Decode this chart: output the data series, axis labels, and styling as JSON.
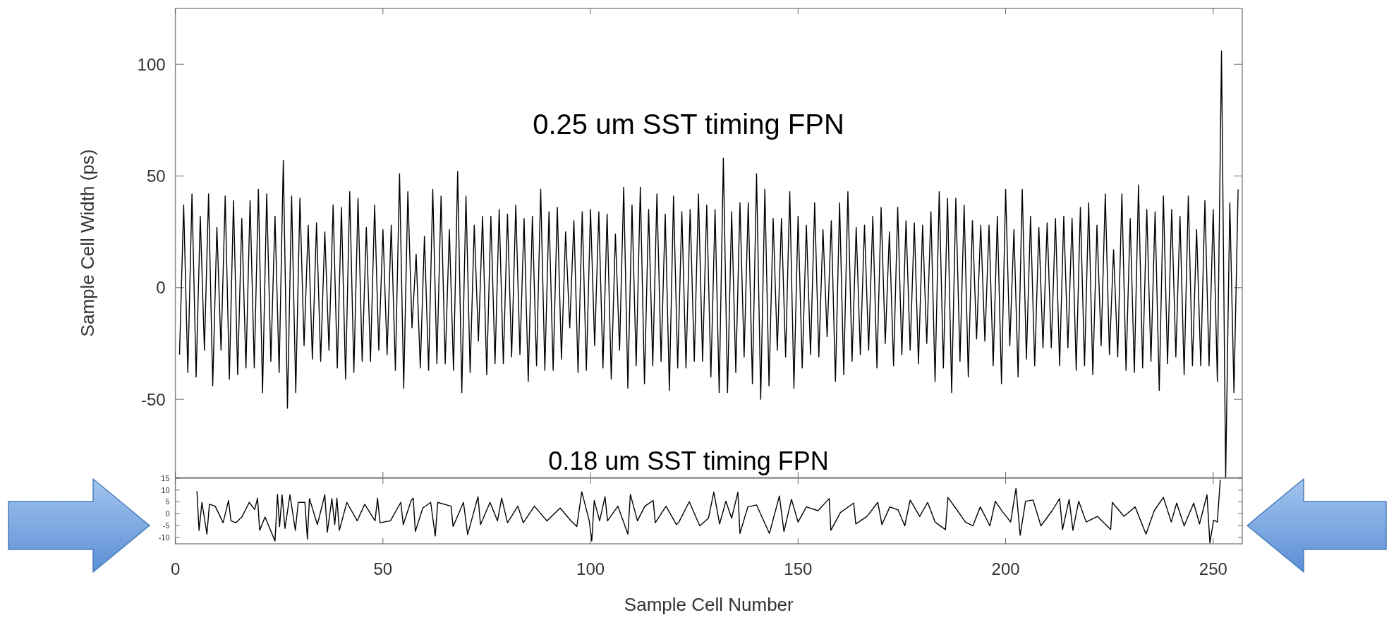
{
  "chart_data": [
    {
      "type": "line",
      "title": "0.25 um SST timing FPN",
      "ylabel": "Sample Cell Width (ps)",
      "xlim": [
        0,
        257
      ],
      "xticks": [
        0,
        50,
        100,
        150,
        200,
        250
      ],
      "ylim": [
        -85,
        125
      ],
      "yticks": [
        -50,
        0,
        50,
        100
      ],
      "tick_labels": "y",
      "grid": false,
      "marker": "none",
      "line_style": "solid",
      "series": [
        {
          "color": "#000000",
          "x": [
            1,
            2,
            3,
            4,
            5,
            6,
            7,
            8,
            9,
            10,
            11,
            12,
            13,
            14,
            15,
            16,
            17,
            18,
            19,
            20,
            21,
            22,
            23,
            24,
            25,
            26,
            27,
            28,
            29,
            30,
            31,
            32,
            33,
            34,
            35,
            36,
            37,
            38,
            39,
            40,
            41,
            42,
            43,
            44,
            45,
            46,
            47,
            48,
            49,
            50,
            51,
            52,
            53,
            54,
            55,
            56,
            57,
            58,
            59,
            60,
            61,
            62,
            63,
            64,
            65,
            66,
            67,
            68,
            69,
            70,
            71,
            72,
            73,
            74,
            75,
            76,
            77,
            78,
            79,
            80,
            81,
            82,
            83,
            84,
            85,
            86,
            87,
            88,
            89,
            90,
            91,
            92,
            93,
            94,
            95,
            96,
            97,
            98,
            99,
            100,
            101,
            102,
            103,
            104,
            105,
            106,
            107,
            108,
            109,
            110,
            111,
            112,
            113,
            114,
            115,
            116,
            117,
            118,
            119,
            120,
            121,
            122,
            123,
            124,
            125,
            126,
            127,
            128,
            129,
            130,
            131,
            132,
            133,
            134,
            135,
            136,
            137,
            138,
            139,
            140,
            141,
            142,
            143,
            144,
            145,
            146,
            147,
            148,
            149,
            150,
            151,
            152,
            153,
            154,
            155,
            156,
            157,
            158,
            159,
            160,
            161,
            162,
            163,
            164,
            165,
            166,
            167,
            168,
            169,
            170,
            171,
            172,
            173,
            174,
            175,
            176,
            177,
            178,
            179,
            180,
            181,
            182,
            183,
            184,
            185,
            186,
            187,
            188,
            189,
            190,
            191,
            192,
            193,
            194,
            195,
            196,
            197,
            198,
            199,
            200,
            201,
            202,
            203,
            204,
            205,
            206,
            207,
            208,
            209,
            210,
            211,
            212,
            213,
            214,
            215,
            216,
            217,
            218,
            219,
            220,
            221,
            222,
            223,
            224,
            225,
            226,
            227,
            228,
            229,
            230,
            231,
            232,
            233,
            234,
            235,
            236,
            237,
            238,
            239,
            240,
            241,
            242,
            243,
            244,
            245,
            246,
            247,
            248,
            249,
            250,
            251,
            252,
            253,
            254,
            255,
            256
          ],
          "values": [
            -30,
            37,
            -38,
            42,
            -40,
            32,
            -28,
            42,
            -44,
            27,
            -28,
            41,
            -41,
            39,
            -39,
            31,
            -36,
            39,
            -36,
            44,
            -47,
            42,
            -33,
            32,
            -38,
            57,
            -54,
            41,
            -47,
            40,
            -26,
            28,
            -32,
            29,
            -33,
            25,
            -28,
            37,
            -36,
            36,
            -41,
            43,
            -38,
            40,
            -33,
            27,
            -33,
            37,
            -28,
            26,
            -30,
            28,
            -37,
            51,
            -45,
            43,
            -18,
            15,
            -36,
            23,
            -37,
            44,
            -34,
            41,
            -34,
            26,
            -37,
            52,
            -47,
            41,
            -38,
            28,
            -24,
            32,
            -39,
            32,
            -34,
            35,
            -34,
            33,
            -31,
            37,
            -30,
            31,
            -42,
            32,
            -35,
            44,
            -37,
            34,
            -37,
            36,
            -32,
            25,
            -18,
            30,
            -38,
            34,
            -37,
            35,
            -26,
            34,
            -36,
            33,
            -41,
            24,
            -28,
            45,
            -45,
            37,
            -35,
            45,
            -43,
            35,
            -35,
            42,
            -33,
            33,
            -46,
            41,
            -36,
            34,
            -36,
            35,
            -33,
            42,
            -33,
            37,
            -40,
            35,
            -47,
            58,
            -47,
            34,
            -38,
            38,
            -31,
            38,
            -43,
            51,
            -50,
            44,
            -44,
            31,
            -28,
            31,
            -31,
            43,
            -45,
            32,
            -36,
            28,
            -30,
            38,
            -31,
            26,
            -22,
            30,
            -42,
            38,
            -39,
            43,
            -33,
            27,
            -30,
            28,
            -28,
            32,
            -36,
            36,
            -25,
            25,
            -35,
            36,
            -30,
            30,
            -28,
            29,
            -34,
            28,
            -25,
            34,
            -42,
            43,
            -36,
            40,
            -47,
            40,
            -33,
            37,
            -40,
            30,
            -23,
            28,
            -24,
            28,
            -35,
            32,
            -43,
            44,
            -26,
            26,
            -40,
            44,
            -32,
            32,
            -35,
            27,
            -27,
            29,
            -27,
            31,
            -35,
            32,
            -27,
            31,
            -37,
            36,
            -35,
            38,
            -39,
            28,
            -26,
            42,
            -30,
            17,
            -31,
            42,
            -37,
            31,
            -38,
            46,
            -36,
            35,
            -33,
            34,
            -46,
            41,
            -34,
            35,
            -31,
            32,
            -39,
            41,
            -35,
            26,
            -35,
            39,
            -35,
            35,
            -42,
            106,
            -85,
            38,
            -47,
            44
          ]
        }
      ]
    },
    {
      "type": "line",
      "title": "0.18 um SST timing FPN",
      "xlabel": "Sample Cell Number",
      "xlim": [
        0,
        257
      ],
      "xticks": [
        0,
        50,
        100,
        150,
        200,
        250
      ],
      "ylim": [
        -12.7,
        15
      ],
      "yticks": [
        -10,
        -5,
        0,
        5,
        10,
        15
      ],
      "grid": false,
      "marker": "none",
      "line_style": "solid",
      "series": [
        {
          "color": "#000000",
          "x": [
            5.2,
            5.7,
            6.4,
            7.6,
            8.2,
            9.6,
            11.5,
            12.8,
            13.4,
            14.6,
            16.0,
            17.8,
            19.1,
            19.8,
            20.3,
            21.6,
            24.0,
            24.6,
            25.1,
            25.7,
            26.4,
            27.6,
            28.9,
            29.6,
            31.2,
            31.8,
            32.3,
            34.2,
            36.0,
            36.6,
            37.7,
            38.4,
            38.9,
            39.5,
            41.3,
            43.8,
            45.6,
            48.1,
            48.7,
            49.3,
            51.8,
            54.3,
            54.9,
            56.8,
            57.3,
            57.8,
            59.6,
            61.5,
            62.6,
            63.2,
            66.4,
            66.9,
            69.4,
            70.4,
            72.9,
            73.5,
            75.8,
            77.6,
            78.6,
            80.0,
            82.5,
            83.8,
            86.5,
            89.5,
            92.7,
            95.3,
            96.7,
            97.9,
            99.7,
            100.3,
            100.9,
            102.2,
            103.5,
            104.1,
            106.6,
            109.0,
            109.6,
            111.3,
            113.1,
            115.1,
            115.6,
            118.2,
            120.7,
            121.3,
            123.8,
            126.3,
            128.4,
            129.7,
            131.1,
            132.6,
            134.0,
            135.5,
            136.0,
            137.9,
            140.0,
            143.1,
            145.5,
            146.6,
            148.4,
            150.0,
            152.0,
            154.8,
            157.5,
            157.9,
            160.2,
            163.4,
            163.9,
            166.6,
            169.2,
            170.2,
            172.1,
            174.1,
            175.7,
            177.0,
            179.3,
            181.2,
            183.0,
            185.5,
            186.1,
            188.4,
            190.3,
            192.1,
            193.9,
            196.2,
            197.5,
            199.4,
            201.2,
            202.5,
            203.5,
            204.8,
            206.6,
            208.5,
            211.2,
            213.0,
            213.7,
            215.3,
            216.2,
            217.6,
            219.4,
            222.1,
            225.3,
            225.7,
            228.5,
            231.2,
            233.8,
            235.8,
            238.0,
            239.9,
            241.2,
            243.0,
            245.3,
            246.7,
            248.5,
            249.2,
            250.1,
            251.0,
            251.7
          ],
          "values": [
            9.6,
            -7.0,
            4.8,
            -8.6,
            4.0,
            3.2,
            -3.8,
            5.6,
            -3.0,
            -3.8,
            -1.4,
            4.8,
            1.8,
            6.6,
            -7.0,
            -1.4,
            -11.5,
            8.2,
            -5.4,
            8.0,
            -6.2,
            8.0,
            -7.0,
            4.8,
            4.8,
            -10.7,
            6.4,
            -4.6,
            8.0,
            -7.8,
            6.4,
            -4.6,
            6.6,
            -7.0,
            4.8,
            -3.0,
            4.0,
            -3.0,
            6.6,
            -3.8,
            -3.0,
            4.8,
            -4.6,
            5.6,
            6.6,
            -7.5,
            2.4,
            4.8,
            -9.4,
            4.8,
            3.2,
            -5.4,
            4.8,
            -8.8,
            7.2,
            -4.6,
            4.8,
            -3.0,
            6.6,
            -3.8,
            3.2,
            -3.8,
            3.2,
            -3.0,
            2.4,
            -3.0,
            -5.4,
            9.3,
            -3.0,
            -11.5,
            5.6,
            -3.0,
            7.2,
            -3.0,
            3.2,
            -8.6,
            8.2,
            -3.0,
            3.2,
            5.6,
            -3.8,
            3.2,
            -4.6,
            -3.5,
            5.1,
            -5.1,
            -1.9,
            9.1,
            -4.3,
            5.3,
            -1.9,
            9.1,
            -8.3,
            2.9,
            3.7,
            -8.3,
            7.5,
            -7.5,
            6.1,
            -3.5,
            2.9,
            1.3,
            6.4,
            -7.0,
            0.5,
            4.5,
            -4.3,
            -1.1,
            4.8,
            -4.6,
            2.9,
            1.6,
            -5.1,
            5.8,
            -1.1,
            4.8,
            -3.5,
            -6.7,
            6.9,
            1.3,
            -3.5,
            -5.1,
            2.9,
            -5.1,
            5.3,
            0.5,
            -3.5,
            10.7,
            -9.1,
            5.3,
            5.8,
            -5.1,
            1.3,
            6.4,
            -6.7,
            6.1,
            -7.0,
            5.3,
            -3.5,
            -1.1,
            -6.7,
            4.8,
            -1.1,
            2.9,
            -8.6,
            1.3,
            6.9,
            -3.5,
            4.5,
            -5.1,
            4.5,
            -4.3,
            8.0,
            -12.3,
            -2.7,
            -3.5,
            14.4
          ]
        }
      ]
    }
  ]
}
